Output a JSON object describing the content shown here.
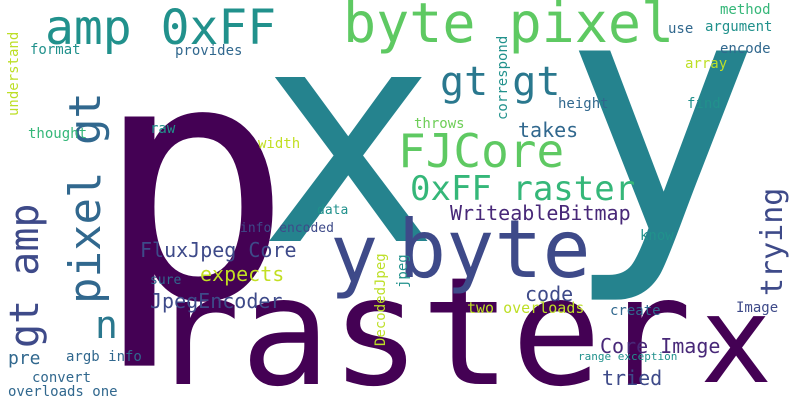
{
  "words": [
    {
      "text": "p",
      "color": "#440154"
    },
    {
      "text": "x",
      "color": "#25838e"
    },
    {
      "text": "y",
      "color": "#25838e"
    },
    {
      "text": "raster",
      "color": "#440154"
    },
    {
      "text": "x",
      "color": "#440154"
    },
    {
      "text": "byte",
      "color": "#3e4a89"
    },
    {
      "text": "y",
      "color": "#3e4a89"
    },
    {
      "text": "byte pixel",
      "color": "#5ec962"
    },
    {
      "text": "amp 0xFF",
      "color": "#21918c"
    },
    {
      "text": "gt gt",
      "color": "#2a788e"
    },
    {
      "text": "FJCore",
      "color": "#5ec962"
    },
    {
      "text": "0xFF raster",
      "color": "#35b779"
    },
    {
      "text": "pixel gt",
      "color": "#31688e"
    },
    {
      "text": "gt amp",
      "color": "#3e4a89"
    },
    {
      "text": "n",
      "color": "#2a788e"
    },
    {
      "text": "trying",
      "color": "#3e4a89"
    },
    {
      "text": "WriteableBitmap",
      "color": "#482878"
    },
    {
      "text": "takes",
      "color": "#31688e"
    },
    {
      "text": "FluxJpeg Core",
      "color": "#3e4a89"
    },
    {
      "text": "expects",
      "color": "#c2df23"
    },
    {
      "text": "JpegEncoder",
      "color": "#3e4a89"
    },
    {
      "text": "code",
      "color": "#3e4a89"
    },
    {
      "text": "Core Image",
      "color": "#482878"
    },
    {
      "text": "tried",
      "color": "#3e4a89"
    },
    {
      "text": "pre",
      "color": "#31688e"
    },
    {
      "text": "argb info",
      "color": "#31688e"
    },
    {
      "text": "convert",
      "color": "#31688e"
    },
    {
      "text": "overloads one",
      "color": "#31688e"
    },
    {
      "text": "info encoded",
      "color": "#3e4a89"
    },
    {
      "text": "data",
      "color": "#21918c"
    },
    {
      "text": "sure",
      "color": "#31688e"
    },
    {
      "text": "DecodedJpeg",
      "color": "#bddf26"
    },
    {
      "text": "jpeg",
      "color": "#21918c"
    },
    {
      "text": "two overloads",
      "color": "#bddf26"
    },
    {
      "text": "create",
      "color": "#31688e"
    },
    {
      "text": "Image",
      "color": "#3e4a89"
    },
    {
      "text": "range exception",
      "color": "#21918c"
    },
    {
      "text": "know",
      "color": "#21918c"
    },
    {
      "text": "find",
      "color": "#21918c"
    },
    {
      "text": "height",
      "color": "#31688e"
    },
    {
      "text": "array",
      "color": "#bddf26"
    },
    {
      "text": "method",
      "color": "#35b779"
    },
    {
      "text": "argument",
      "color": "#21918c"
    },
    {
      "text": "use",
      "color": "#31688e"
    },
    {
      "text": "encode",
      "color": "#31688e"
    },
    {
      "text": "correspond",
      "color": "#21918c"
    },
    {
      "text": "throws",
      "color": "#6ece58"
    },
    {
      "text": "width",
      "color": "#c2df23"
    },
    {
      "text": "raw",
      "color": "#21918c"
    },
    {
      "text": "provides",
      "color": "#31688e"
    },
    {
      "text": "format",
      "color": "#21918c"
    },
    {
      "text": "understand",
      "color": "#bddf26"
    },
    {
      "text": "thought",
      "color": "#35b779"
    }
  ]
}
